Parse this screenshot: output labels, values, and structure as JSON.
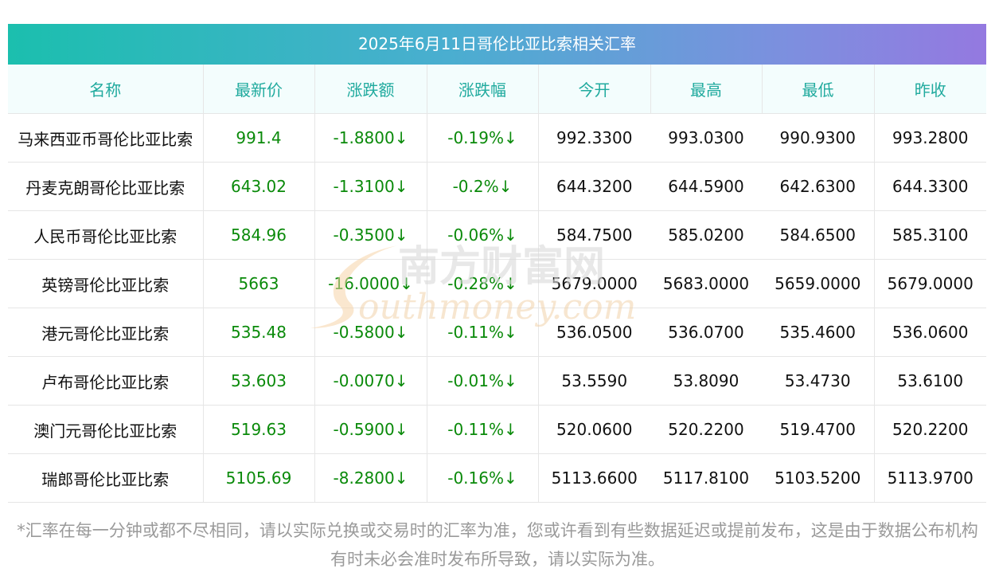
{
  "title": "2025年6月11日哥伦比亚比索相关汇率",
  "headers": [
    "名称",
    "最新价",
    "涨跌额",
    "涨跌幅",
    "今开",
    "最高",
    "最低",
    "昨收"
  ],
  "rows": [
    {
      "name": "马来西亚币哥伦比亚比索",
      "last": "991.4",
      "chg": "-1.8800↓",
      "pct": "-0.19%↓",
      "open": "992.3300",
      "high": "993.0300",
      "low": "990.9300",
      "prev": "993.2800"
    },
    {
      "name": "丹麦克朗哥伦比亚比索",
      "last": "643.02",
      "chg": "-1.3100↓",
      "pct": "-0.2%↓",
      "open": "644.3200",
      "high": "644.5900",
      "low": "642.6300",
      "prev": "644.3300"
    },
    {
      "name": "人民币哥伦比亚比索",
      "last": "584.96",
      "chg": "-0.3500↓",
      "pct": "-0.06%↓",
      "open": "584.7500",
      "high": "585.0200",
      "low": "584.6500",
      "prev": "585.3100"
    },
    {
      "name": "英镑哥伦比亚比索",
      "last": "5663",
      "chg": "-16.0000↓",
      "pct": "-0.28%↓",
      "open": "5679.0000",
      "high": "5683.0000",
      "low": "5659.0000",
      "prev": "5679.0000"
    },
    {
      "name": "港元哥伦比亚比索",
      "last": "535.48",
      "chg": "-0.5800↓",
      "pct": "-0.11%↓",
      "open": "536.0500",
      "high": "536.0700",
      "low": "535.4600",
      "prev": "536.0600"
    },
    {
      "name": "卢布哥伦比亚比索",
      "last": "53.603",
      "chg": "-0.0070↓",
      "pct": "-0.01%↓",
      "open": "53.5590",
      "high": "53.8090",
      "low": "53.4730",
      "prev": "53.6100"
    },
    {
      "name": "澳门元哥伦比亚比索",
      "last": "519.63",
      "chg": "-0.5900↓",
      "pct": "-0.11%↓",
      "open": "520.0600",
      "high": "520.2200",
      "low": "519.4700",
      "prev": "520.2200"
    },
    {
      "name": "瑞郎哥伦比亚比索",
      "last": "5105.69",
      "chg": "-8.2800↓",
      "pct": "-0.16%↓",
      "open": "5113.6600",
      "high": "5117.8100",
      "low": "5103.5200",
      "prev": "5113.9700"
    }
  ],
  "watermark": {
    "cn": "南方财富网",
    "en": "outhmoney.com"
  },
  "note": "*汇率在每一分钟或都不尽相同，请以实际兑换或交易时的汇率为准，您或许看到有些数据延迟或提前发布，这是由于数据公布机构有时未必会准时发布所导致，请以实际为准。",
  "colors": {
    "title_from": "#1bbfae",
    "title_to": "#9479e0",
    "header_text": "#20aa9e",
    "down": "#0a8a0a"
  }
}
